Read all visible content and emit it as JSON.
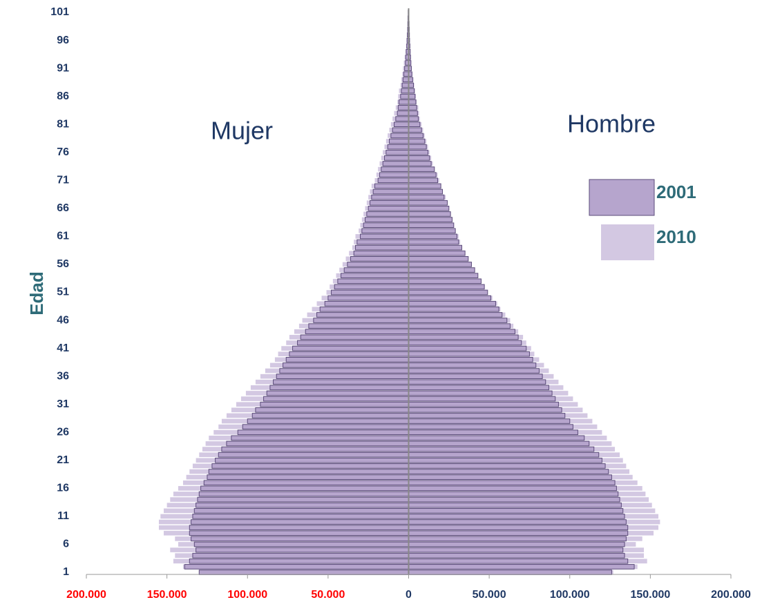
{
  "chart_data": {
    "type": "pyramid",
    "y_label": "Edad",
    "left_label": "Mujer",
    "right_label": "Hombre",
    "categories": [
      "1",
      null,
      null,
      null,
      null,
      "6",
      null,
      null,
      null,
      null,
      "11",
      null,
      null,
      null,
      null,
      "16",
      null,
      null,
      null,
      null,
      "21",
      null,
      null,
      null,
      null,
      "26",
      null,
      null,
      null,
      null,
      "31",
      null,
      null,
      null,
      null,
      "36",
      null,
      null,
      null,
      null,
      "41",
      null,
      null,
      null,
      null,
      "46",
      null,
      null,
      null,
      null,
      "51",
      null,
      null,
      null,
      null,
      "56",
      null,
      null,
      null,
      null,
      "61",
      null,
      null,
      null,
      null,
      "66",
      null,
      null,
      null,
      null,
      "71",
      null,
      null,
      null,
      null,
      "76",
      null,
      null,
      null,
      null,
      "81",
      null,
      null,
      null,
      null,
      "86",
      null,
      null,
      null,
      null,
      "91",
      null,
      null,
      null,
      null,
      "96",
      null,
      null,
      null,
      null,
      "101"
    ],
    "series": [
      {
        "name": "2010",
        "color": "#d3c8e2",
        "stroke": "none",
        "mujer": [
          127000,
          140000,
          146000,
          145000,
          148000,
          143000,
          145000,
          152000,
          155000,
          155000,
          154000,
          152000,
          150000,
          148000,
          146000,
          143000,
          140000,
          138000,
          136000,
          134000,
          132000,
          130000,
          128000,
          126000,
          124000,
          121000,
          118000,
          116000,
          113000,
          110000,
          107000,
          104000,
          101000,
          98000,
          95000,
          92000,
          89000,
          86000,
          83000,
          81000,
          79000,
          76000,
          74000,
          71000,
          68000,
          66000,
          63000,
          60000,
          57000,
          54000,
          51000,
          49000,
          47000,
          45000,
          43000,
          41000,
          39000,
          37000,
          35000,
          34000,
          33000,
          31000,
          30000,
          29000,
          28000,
          27000,
          26000,
          25000,
          24000,
          23000,
          21000,
          20000,
          19000,
          18000,
          17000,
          16000,
          15000,
          14000,
          13000,
          12000,
          11000,
          10000,
          9000,
          8000,
          7000,
          6500,
          6000,
          5000,
          4500,
          4000,
          3500,
          3000,
          2500,
          2000,
          1600,
          1300,
          1000,
          800,
          600,
          500,
          400
        ],
        "hombre": [
          127000,
          142000,
          148000,
          146000,
          146000,
          141000,
          145000,
          152000,
          155000,
          156000,
          155000,
          153000,
          151000,
          149000,
          147000,
          145000,
          142000,
          139000,
          137000,
          135000,
          133000,
          131000,
          128000,
          126000,
          123000,
          120000,
          117000,
          114000,
          111000,
          108000,
          105000,
          102000,
          99000,
          96000,
          93000,
          90000,
          87000,
          84000,
          81000,
          78000,
          76000,
          73000,
          71000,
          68000,
          65000,
          63000,
          60000,
          57000,
          55000,
          52000,
          49000,
          47000,
          45000,
          43000,
          41000,
          39000,
          37000,
          35000,
          33000,
          32000,
          31000,
          29000,
          28000,
          27000,
          26000,
          25000,
          24000,
          23000,
          21000,
          20000,
          19000,
          18000,
          16000,
          15000,
          14000,
          13000,
          12000,
          11000,
          10000,
          9000,
          8000,
          7000,
          6500,
          6000,
          5000,
          4500,
          4000,
          3500,
          3000,
          2500,
          2000,
          1700,
          1400,
          1100,
          900,
          700,
          500,
          400,
          300,
          200,
          200
        ]
      },
      {
        "name": "2001",
        "color": "#b6a5cd",
        "stroke": "#5b4b7a",
        "mujer": [
          130000,
          139000,
          136000,
          134000,
          132000,
          133000,
          135000,
          136000,
          136000,
          135000,
          134000,
          133000,
          132000,
          131000,
          130000,
          129000,
          127000,
          125000,
          124000,
          122000,
          120000,
          118000,
          116000,
          113000,
          110000,
          106000,
          103000,
          100000,
          97000,
          95000,
          92000,
          90000,
          88000,
          86000,
          84000,
          82000,
          80000,
          78000,
          76000,
          74000,
          72000,
          69000,
          67000,
          64000,
          62000,
          59000,
          57000,
          55000,
          52000,
          50000,
          48000,
          46000,
          44000,
          42000,
          40000,
          38000,
          36000,
          34000,
          33000,
          32000,
          30000,
          29000,
          28000,
          27000,
          26000,
          25000,
          24000,
          23000,
          22000,
          21000,
          19000,
          18000,
          17000,
          16000,
          15000,
          14000,
          13000,
          12000,
          11000,
          10000,
          9000,
          8000,
          7000,
          6500,
          6000,
          5000,
          4500,
          4000,
          3500,
          3000,
          2500,
          2000,
          1800,
          1500,
          1200,
          1000,
          800,
          600,
          500,
          400,
          300
        ],
        "hombre": [
          126000,
          140000,
          136000,
          134000,
          133000,
          134000,
          135000,
          136000,
          136000,
          135000,
          134000,
          133000,
          132000,
          131000,
          130000,
          129000,
          128000,
          126000,
          124000,
          122000,
          120000,
          118000,
          115000,
          112000,
          109000,
          105000,
          102000,
          100000,
          97000,
          95000,
          93000,
          91000,
          89000,
          87000,
          85000,
          83000,
          81000,
          79000,
          77000,
          75000,
          73000,
          70000,
          68000,
          66000,
          63000,
          61000,
          58000,
          56000,
          54000,
          51000,
          49000,
          47000,
          45000,
          43000,
          41000,
          39000,
          37000,
          35000,
          33000,
          31000,
          30000,
          29000,
          28000,
          27000,
          26000,
          25000,
          24000,
          22000,
          21000,
          20000,
          18000,
          17000,
          16000,
          14000,
          13000,
          12000,
          11000,
          10000,
          9000,
          8000,
          7000,
          6000,
          5500,
          5000,
          4500,
          4000,
          3500,
          3000,
          2500,
          2000,
          1700,
          1400,
          1200,
          1000,
          800,
          600,
          500,
          400,
          300,
          200,
          200
        ]
      }
    ],
    "xlim": [
      -200000,
      200000
    ],
    "xticks": [
      {
        "value": -200000,
        "label": "200.000"
      },
      {
        "value": -150000,
        "label": "150.000"
      },
      {
        "value": -100000,
        "label": "100.000"
      },
      {
        "value": -50000,
        "label": "50.000"
      },
      0,
      {
        "value": 50000,
        "label": "50.000"
      },
      {
        "value": 100000,
        "label": "100.000"
      },
      {
        "value": 150000,
        "label": "150.000"
      },
      {
        "value": 200000,
        "label": "200.000"
      }
    ],
    "negative_tick_color": "#ff0000",
    "tick_color": "#1f3864"
  }
}
